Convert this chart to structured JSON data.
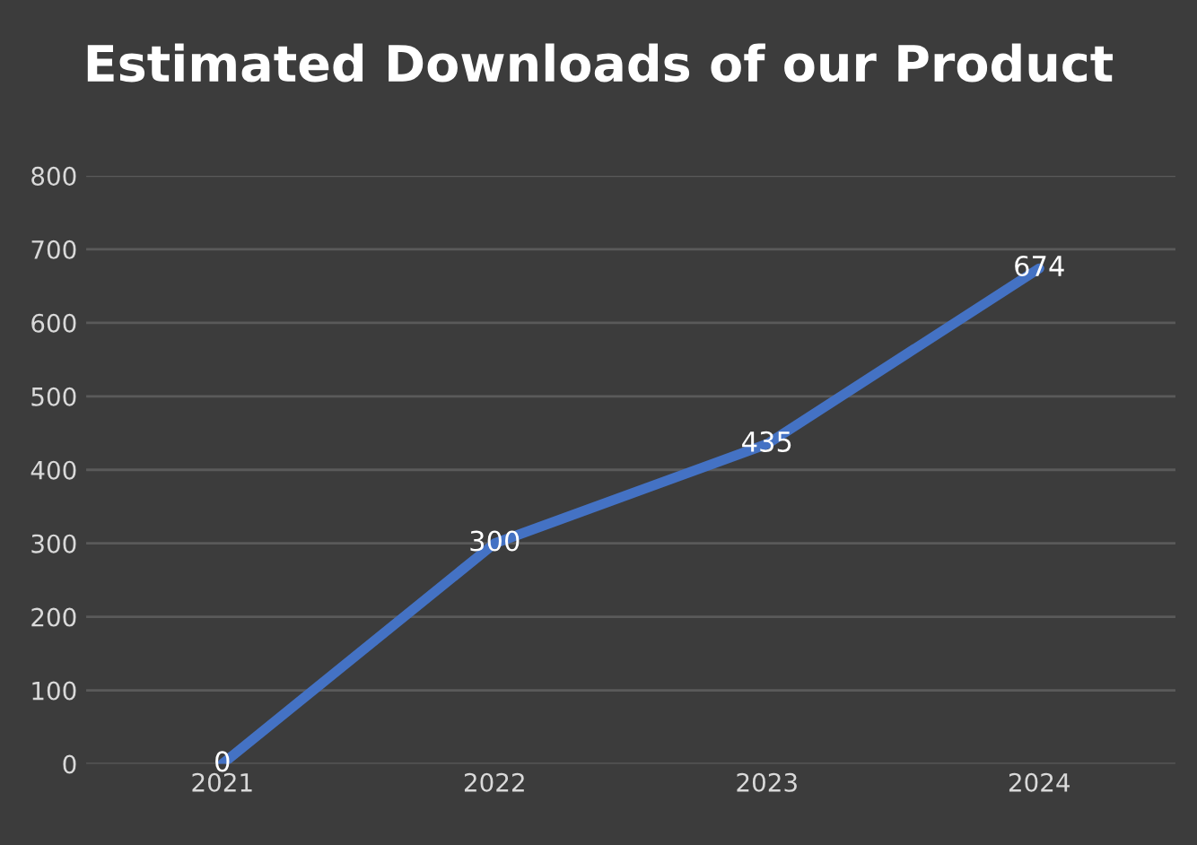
{
  "chart_data": {
    "type": "line",
    "title": "Estimated Downloads of our Product",
    "categories": [
      "2021",
      "2022",
      "2023",
      "2024"
    ],
    "series": [
      {
        "color": "#4472c4",
        "values": [
          0,
          300,
          435,
          674
        ]
      }
    ],
    "ylim": [
      0,
      800
    ],
    "yticks": [
      0,
      100,
      200,
      300,
      400,
      500,
      600,
      700,
      800
    ],
    "grid": "y",
    "data_labels": true,
    "marker": "none",
    "line_style": "solid",
    "legend": false
  }
}
